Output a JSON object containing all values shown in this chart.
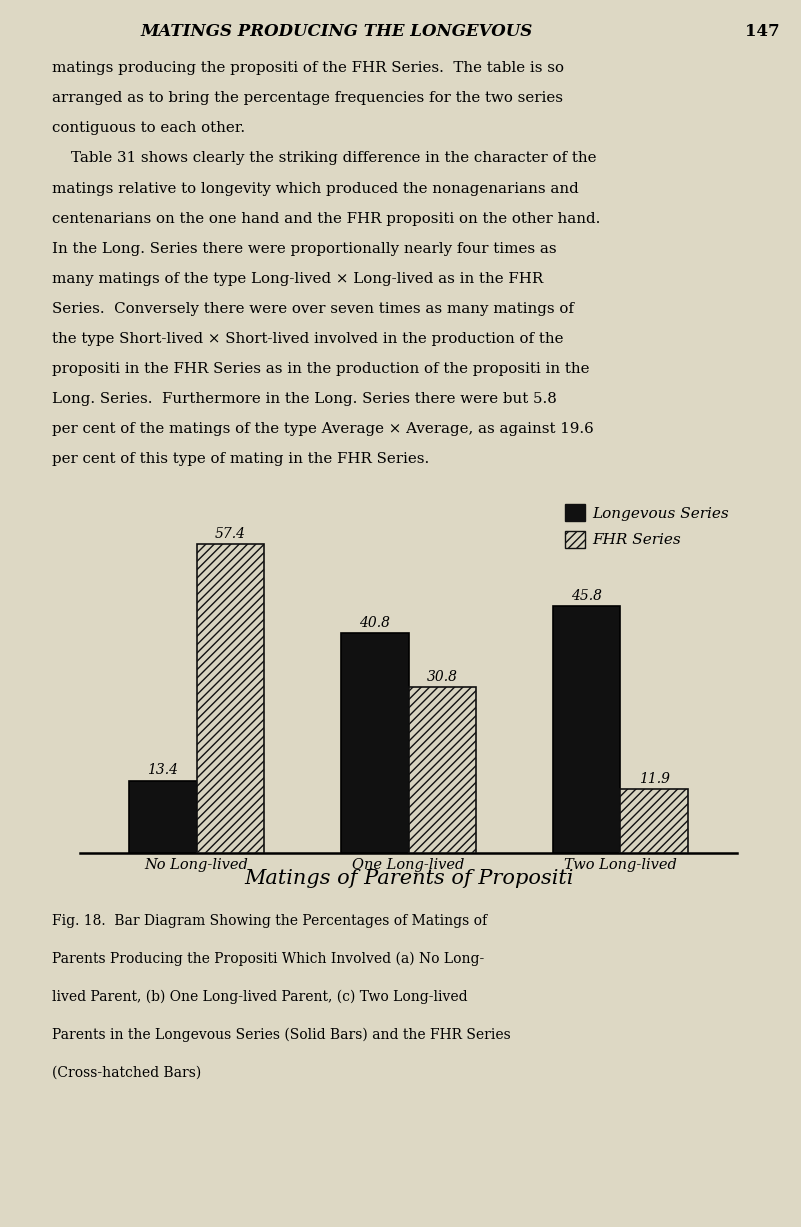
{
  "title": "MATINGS PRODUCING THE LONGEVOUS",
  "page_number": "147",
  "categories": [
    "No Long-lived",
    "One Long-lived",
    "Two Long-lived"
  ],
  "longevous_values": [
    13.4,
    40.8,
    45.8
  ],
  "fhr_values": [
    57.4,
    30.8,
    11.9
  ],
  "xlabel": "Matings of Parents of Propositi",
  "ylim": [
    0,
    65
  ],
  "bar_width": 0.32,
  "solid_color": "#111111",
  "hatch_color": "#111111",
  "hatch_pattern": "////",
  "hatch_facecolor": "#d8d4c0",
  "background_color": "#ddd8c4",
  "legend_longevous": "Longevous Series",
  "legend_fhr": "FHR Series",
  "body_text_lines": [
    "matings producing the propositi of the FHR Series.  The table is so",
    "arranged as to bring the percentage frequencies for the two series",
    "contiguous to each other.",
    "    Table 31 shows clearly the striking difference in the character of the",
    "matings relative to longevity which produced the nonagenarians and",
    "centenarians on the one hand and the FHR propositi on the other hand.",
    "In the Long. Series there were proportionally nearly four times as",
    "many matings of the type Long-lived × Long-lived as in the FHR",
    "Series.  Conversely there were over seven times as many matings of",
    "the type Short-lived × Short-lived involved in the production of the",
    "propositi in the FHR Series as in the production of the propositi in the",
    "Long. Series.  Furthermore in the Long. Series there were but 5.8",
    "per cent of the matings of the type Average × Average, as against 19.6",
    "per cent of this type of mating in the FHR Series."
  ],
  "caption_text": "Fig. 18.  Bar Diagram Showing the Percentages of Matings of\nParents Producing the Propositi Which Involved (a) No Long-\nlived Parent, (b) One Long-lived Parent, (c) Two Long-lived\nParents in the Longevous Series (Solid Bars) and the FHR Series\n(Cross-hatched Bars)",
  "label_fontsize": 10,
  "value_fontsize": 10,
  "xtick_fontsize": 10.5,
  "xlabel_fontsize": 15
}
